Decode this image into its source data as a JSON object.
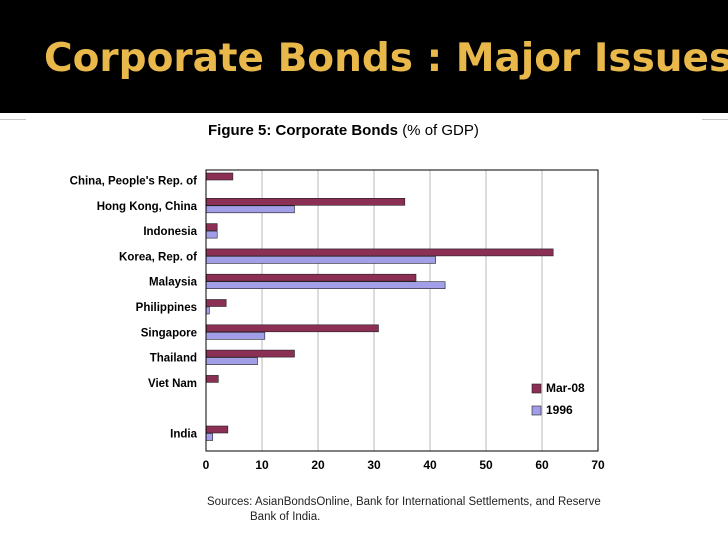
{
  "slide": {
    "title": "Corporate Bonds : Major Issues"
  },
  "figure": {
    "title_prefix": "Figure 5: Corporate Bonds",
    "title_suffix": "(% of GDP)",
    "sources_line1": "Sources: AsianBondsOnline, Bank for International Settlements, and Reserve",
    "sources_line2": "Bank of India."
  },
  "colors": {
    "mar08": "#8b2f55",
    "y1996": "#a29ee8",
    "title_accent": "#e8b84a"
  },
  "chart_data": {
    "type": "bar",
    "orientation": "horizontal",
    "title": "Figure 5: Corporate Bonds (% of GDP)",
    "xlim": [
      0,
      70
    ],
    "xticks": [
      0,
      10,
      20,
      30,
      40,
      50,
      60,
      70
    ],
    "grid": "vertical",
    "legend_position": "bottom-right",
    "categories": [
      "China, People's Rep. of",
      "Hong Kong, China",
      "Indonesia",
      "Korea, Rep. of",
      "Malaysia",
      "Philippines",
      "Singapore",
      "Thailand",
      "Viet Nam",
      "",
      "India"
    ],
    "series": [
      {
        "name": "Mar-08",
        "color": "#8b2f55",
        "values": [
          4.8,
          35.5,
          2,
          62,
          37.5,
          3.6,
          30.8,
          15.8,
          2.2,
          null,
          3.9
        ]
      },
      {
        "name": "1996",
        "color": "#a29ee8",
        "values": [
          null,
          15.8,
          2,
          41,
          42.7,
          0.6,
          10.5,
          9.2,
          null,
          null,
          1.2
        ]
      }
    ]
  }
}
